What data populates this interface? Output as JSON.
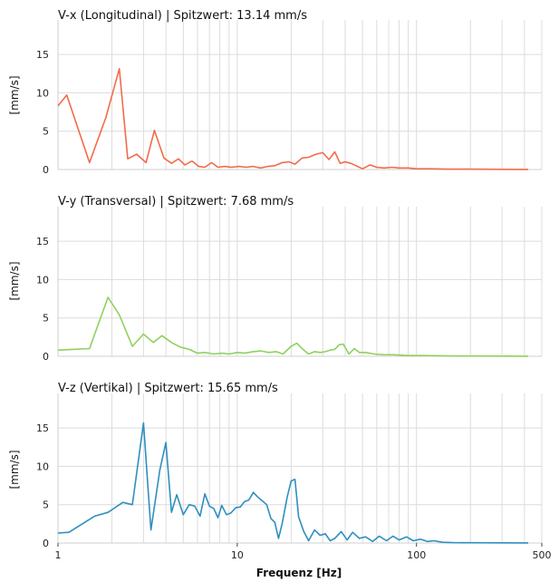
{
  "chart_data": [
    {
      "type": "line",
      "title": "V-x (Longitudinal) | Spitzwert: 13.14 mm/s",
      "ylabel": "[mm/s]",
      "xlabel": "",
      "xscale": "log",
      "xlim": [
        1,
        500
      ],
      "ylim": [
        0,
        19.5
      ],
      "yticks": [
        "0",
        "5",
        "10",
        "15"
      ],
      "color": "#f26b4a",
      "series": [
        {
          "x": [
            1.0,
            1.12,
            1.5,
            1.85,
            2.2,
            2.45,
            2.75,
            3.1,
            3.45,
            3.9,
            4.3,
            4.7,
            5.1,
            5.6,
            6.1,
            6.6,
            7.2,
            7.8,
            8.5,
            9.3,
            10.2,
            11.2,
            12.3,
            13.5,
            14.8,
            16.2,
            17.8,
            19.4,
            21.0,
            23.0,
            25.0,
            27.5,
            30.0,
            32.5,
            35.0,
            37.5,
            40.0,
            43.0,
            46.0,
            50.0,
            55.0,
            60.0,
            66.0,
            73.0,
            80.0,
            90.0,
            100.0,
            120.0,
            150.0,
            200.0,
            300.0,
            420.0
          ],
          "y": [
            8.3,
            9.7,
            0.9,
            6.8,
            13.14,
            1.4,
            2.0,
            0.9,
            5.1,
            1.5,
            0.8,
            1.4,
            0.6,
            1.1,
            0.4,
            0.3,
            0.9,
            0.3,
            0.4,
            0.3,
            0.4,
            0.3,
            0.4,
            0.2,
            0.4,
            0.5,
            0.9,
            1.0,
            0.7,
            1.5,
            1.6,
            2.0,
            2.2,
            1.3,
            2.3,
            0.8,
            1.0,
            0.8,
            0.5,
            0.1,
            0.6,
            0.3,
            0.2,
            0.3,
            0.2,
            0.2,
            0.1,
            0.1,
            0.05,
            0.05,
            0.02,
            0.01
          ]
        }
      ]
    },
    {
      "type": "line",
      "title": "V-y (Transversal) | Spitzwert: 7.68 mm/s",
      "ylabel": "[mm/s]",
      "xlabel": "",
      "xscale": "log",
      "xlim": [
        1,
        500
      ],
      "ylim": [
        0,
        19.5
      ],
      "yticks": [
        "0",
        "5",
        "10",
        "15"
      ],
      "color": "#8fd15e",
      "series": [
        {
          "x": [
            1.0,
            1.2,
            1.5,
            1.9,
            2.2,
            2.6,
            3.0,
            3.4,
            3.8,
            4.3,
            4.8,
            5.4,
            6.0,
            6.6,
            7.4,
            8.2,
            9.0,
            10.0,
            11.0,
            12.3,
            13.5,
            15.0,
            16.5,
            18.0,
            20.0,
            21.5,
            23.0,
            25.0,
            27.0,
            29.0,
            31.0,
            33.0,
            35.0,
            37.0,
            39.0,
            42.0,
            45.0,
            48.0,
            52.0,
            58.0,
            65.0,
            75.0,
            90.0,
            110.0,
            150.0,
            200.0,
            300.0,
            420.0
          ],
          "y": [
            0.8,
            0.9,
            1.0,
            7.68,
            5.4,
            1.3,
            2.9,
            1.8,
            2.7,
            1.8,
            1.2,
            0.9,
            0.4,
            0.5,
            0.3,
            0.4,
            0.3,
            0.5,
            0.4,
            0.6,
            0.7,
            0.5,
            0.6,
            0.3,
            1.3,
            1.7,
            1.0,
            0.3,
            0.6,
            0.5,
            0.6,
            0.8,
            0.9,
            1.5,
            1.6,
            0.3,
            1.0,
            0.5,
            0.5,
            0.3,
            0.2,
            0.2,
            0.1,
            0.1,
            0.05,
            0.03,
            0.02,
            0.01
          ]
        }
      ]
    },
    {
      "type": "line",
      "title": "V-z (Vertikal) | Spitzwert: 15.65 mm/s",
      "ylabel": "[mm/s]",
      "xlabel": "Frequenz [Hz]",
      "xscale": "log",
      "xlim": [
        1,
        500
      ],
      "ylim": [
        0,
        19.5
      ],
      "xticks": [
        "1",
        "10",
        "100",
        "500"
      ],
      "yticks": [
        "0",
        "5",
        "10",
        "15"
      ],
      "color": "#2f8fbf",
      "series": [
        {
          "x": [
            1.0,
            1.15,
            1.6,
            1.9,
            2.3,
            2.6,
            3.0,
            3.3,
            3.7,
            4.0,
            4.3,
            4.6,
            5.0,
            5.4,
            5.8,
            6.2,
            6.6,
            7.0,
            7.4,
            7.8,
            8.2,
            8.7,
            9.2,
            9.8,
            10.4,
            11.0,
            11.6,
            12.3,
            13.0,
            13.8,
            14.6,
            15.4,
            16.2,
            17.0,
            17.8,
            19.0,
            20.0,
            21.0,
            22.0,
            23.5,
            25.0,
            27.0,
            29.0,
            31.0,
            33.0,
            35.0,
            38.0,
            41.0,
            44.0,
            48.0,
            52.0,
            57.0,
            62.0,
            68.0,
            74.0,
            80.0,
            88.0,
            96.0,
            105.0,
            115.0,
            125.0,
            140.0,
            160.0,
            200.0,
            300.0,
            420.0
          ],
          "y": [
            1.3,
            1.4,
            3.5,
            4.0,
            5.3,
            5.0,
            15.65,
            1.7,
            9.5,
            13.1,
            4.0,
            6.3,
            3.7,
            5.0,
            4.8,
            3.5,
            6.4,
            4.8,
            4.5,
            3.3,
            4.9,
            3.7,
            3.9,
            4.6,
            4.7,
            5.4,
            5.6,
            6.6,
            6.0,
            5.5,
            5.0,
            3.2,
            2.7,
            0.6,
            2.5,
            6.0,
            8.1,
            8.3,
            3.4,
            1.5,
            0.3,
            1.7,
            1.0,
            1.2,
            0.3,
            0.6,
            1.5,
            0.4,
            1.4,
            0.6,
            0.8,
            0.2,
            0.9,
            0.3,
            0.9,
            0.4,
            0.8,
            0.3,
            0.5,
            0.2,
            0.3,
            0.1,
            0.05,
            0.03,
            0.02,
            0.01
          ]
        }
      ]
    }
  ]
}
